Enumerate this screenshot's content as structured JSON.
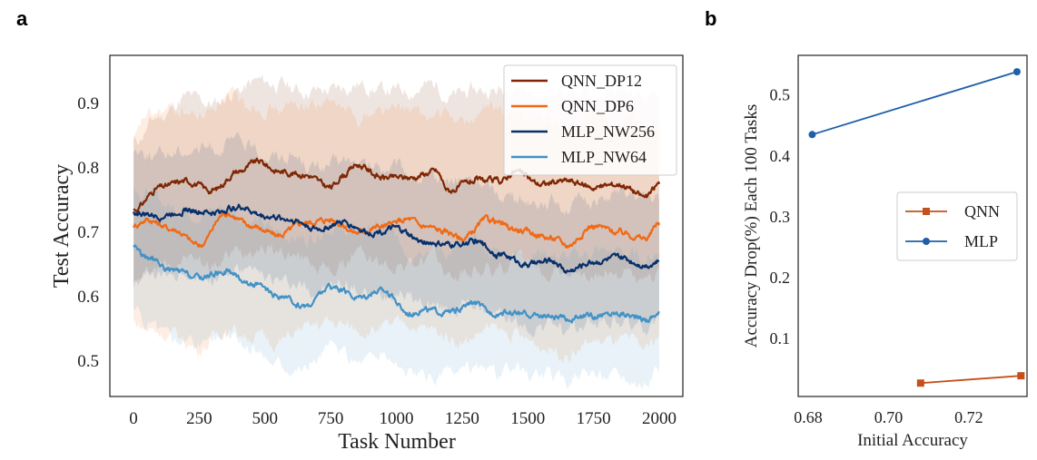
{
  "chart_data": [
    {
      "panel": "a",
      "type": "line",
      "xlabel": "Task Number",
      "ylabel": "Test Accuracy",
      "xlim": [
        -90,
        2090
      ],
      "ylim": [
        0.445,
        0.975
      ],
      "xticks": [
        0,
        250,
        500,
        750,
        1000,
        1250,
        1500,
        1750,
        2000
      ],
      "yticks": [
        0.5,
        0.6,
        0.7,
        0.8,
        0.9
      ],
      "ytick_labels": [
        "0.5",
        "0.6",
        "0.7",
        "0.8",
        "0.9"
      ],
      "legend_position": "top-right",
      "series": [
        {
          "name": "QNN_DP12",
          "color": "#7f2704",
          "x": [
            0,
            100,
            200,
            300,
            400,
            475,
            550,
            650,
            750,
            800,
            850,
            950,
            1050,
            1150,
            1200,
            1300,
            1400,
            1450,
            1550,
            1650,
            1750,
            1850,
            1950,
            2000
          ],
          "y": [
            0.735,
            0.77,
            0.78,
            0.765,
            0.795,
            0.81,
            0.795,
            0.79,
            0.77,
            0.79,
            0.805,
            0.785,
            0.785,
            0.795,
            0.765,
            0.78,
            0.78,
            0.795,
            0.775,
            0.78,
            0.77,
            0.775,
            0.755,
            0.775
          ],
          "band_upper": [
            0.84,
            0.88,
            0.91,
            0.9,
            0.92,
            0.935,
            0.93,
            0.92,
            0.92,
            0.925,
            0.93,
            0.92,
            0.92,
            0.93,
            0.91,
            0.92,
            0.92,
            0.93,
            0.91,
            0.92,
            0.91,
            0.92,
            0.9,
            0.91
          ],
          "band_lower": [
            0.62,
            0.65,
            0.66,
            0.65,
            0.67,
            0.68,
            0.67,
            0.66,
            0.64,
            0.65,
            0.67,
            0.65,
            0.65,
            0.66,
            0.63,
            0.64,
            0.64,
            0.66,
            0.64,
            0.64,
            0.63,
            0.64,
            0.62,
            0.64
          ]
        },
        {
          "name": "QNN_DP6",
          "color": "#f16913",
          "x": [
            0,
            50,
            150,
            250,
            350,
            450,
            550,
            650,
            750,
            850,
            950,
            1050,
            1100,
            1200,
            1250,
            1350,
            1450,
            1500,
            1600,
            1650,
            1750,
            1850,
            1950,
            2000
          ],
          "y": [
            0.71,
            0.72,
            0.705,
            0.68,
            0.73,
            0.71,
            0.695,
            0.715,
            0.72,
            0.7,
            0.71,
            0.72,
            0.71,
            0.7,
            0.69,
            0.72,
            0.705,
            0.7,
            0.69,
            0.68,
            0.71,
            0.7,
            0.69,
            0.715
          ],
          "band_upper": [
            0.84,
            0.88,
            0.89,
            0.88,
            0.91,
            0.9,
            0.89,
            0.9,
            0.9,
            0.88,
            0.89,
            0.89,
            0.88,
            0.88,
            0.87,
            0.89,
            0.88,
            0.88,
            0.87,
            0.86,
            0.88,
            0.87,
            0.86,
            0.87
          ],
          "band_lower": [
            0.56,
            0.55,
            0.54,
            0.52,
            0.55,
            0.54,
            0.53,
            0.55,
            0.56,
            0.55,
            0.55,
            0.56,
            0.55,
            0.54,
            0.53,
            0.55,
            0.54,
            0.53,
            0.52,
            0.51,
            0.53,
            0.53,
            0.52,
            0.54
          ]
        },
        {
          "name": "MLP_NW256",
          "color": "#08306b",
          "x": [
            0,
            100,
            200,
            300,
            400,
            500,
            600,
            700,
            800,
            900,
            1000,
            1100,
            1200,
            1300,
            1400,
            1500,
            1600,
            1650,
            1750,
            1850,
            1950,
            2000
          ],
          "y": [
            0.73,
            0.725,
            0.735,
            0.73,
            0.74,
            0.725,
            0.72,
            0.705,
            0.715,
            0.7,
            0.705,
            0.685,
            0.68,
            0.685,
            0.665,
            0.65,
            0.655,
            0.64,
            0.655,
            0.66,
            0.65,
            0.655
          ],
          "band_upper": [
            0.83,
            0.82,
            0.83,
            0.83,
            0.84,
            0.82,
            0.82,
            0.8,
            0.81,
            0.8,
            0.8,
            0.78,
            0.78,
            0.78,
            0.76,
            0.75,
            0.75,
            0.74,
            0.75,
            0.76,
            0.75,
            0.75
          ],
          "band_lower": [
            0.63,
            0.63,
            0.64,
            0.63,
            0.64,
            0.63,
            0.62,
            0.61,
            0.62,
            0.6,
            0.61,
            0.59,
            0.58,
            0.59,
            0.57,
            0.55,
            0.56,
            0.54,
            0.56,
            0.56,
            0.55,
            0.56
          ]
        },
        {
          "name": "MLP_NW64",
          "color": "#4292c6",
          "x": [
            0,
            50,
            150,
            250,
            350,
            450,
            550,
            650,
            750,
            850,
            950,
            1050,
            1100,
            1200,
            1300,
            1350,
            1450,
            1550,
            1650,
            1750,
            1850,
            1950,
            2000
          ],
          "y": [
            0.68,
            0.66,
            0.64,
            0.63,
            0.64,
            0.62,
            0.6,
            0.585,
            0.615,
            0.6,
            0.61,
            0.575,
            0.58,
            0.575,
            0.59,
            0.575,
            0.575,
            0.57,
            0.565,
            0.57,
            0.575,
            0.565,
            0.575
          ],
          "band_upper": [
            0.77,
            0.76,
            0.74,
            0.73,
            0.74,
            0.72,
            0.7,
            0.69,
            0.71,
            0.7,
            0.71,
            0.67,
            0.68,
            0.67,
            0.69,
            0.67,
            0.67,
            0.67,
            0.66,
            0.67,
            0.67,
            0.66,
            0.67
          ],
          "band_lower": [
            0.58,
            0.56,
            0.54,
            0.53,
            0.54,
            0.52,
            0.5,
            0.49,
            0.52,
            0.5,
            0.51,
            0.48,
            0.47,
            0.48,
            0.49,
            0.48,
            0.48,
            0.48,
            0.47,
            0.48,
            0.48,
            0.47,
            0.48
          ]
        }
      ]
    },
    {
      "panel": "b",
      "type": "line",
      "xlabel": "Initial Accuracy",
      "ylabel": "Accuracy Drop(%) Each 100 Tasks",
      "xlim": [
        0.6775,
        0.7345
      ],
      "ylim": [
        0.005,
        0.565
      ],
      "xticks": [
        0.68,
        0.7,
        0.72
      ],
      "xtick_labels": [
        "0.68",
        "0.70",
        "0.72"
      ],
      "yticks": [
        0.1,
        0.2,
        0.3,
        0.4,
        0.5
      ],
      "ytick_labels": [
        "0.1",
        "0.2",
        "0.3",
        "0.4",
        "0.5"
      ],
      "legend_position": "center-right",
      "series": [
        {
          "name": "QNN",
          "color": "#c4511b",
          "marker": "square",
          "x": [
            0.708,
            0.733
          ],
          "y": [
            0.027,
            0.039
          ]
        },
        {
          "name": "MLP",
          "color": "#1f5fa8",
          "marker": "circle",
          "x": [
            0.681,
            0.732
          ],
          "y": [
            0.435,
            0.538
          ]
        }
      ]
    }
  ]
}
